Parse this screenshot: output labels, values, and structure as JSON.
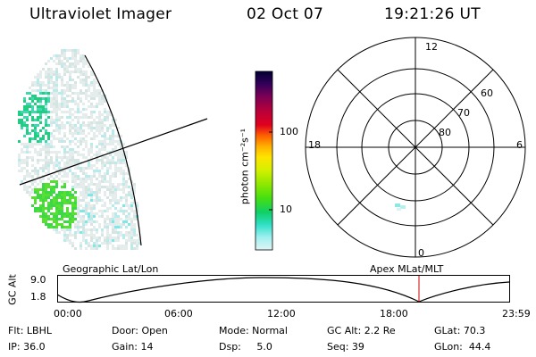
{
  "header": {
    "instrument": "Ultraviolet Imager",
    "date": "02 Oct 07",
    "time": "19:21:26 UT"
  },
  "colorbar": {
    "unit_label": "photon cm⁻²s⁻¹",
    "ticks": [
      "100",
      "10"
    ],
    "scale": "log",
    "colors": [
      "#000033",
      "#33005a",
      "#7a0055",
      "#b8003a",
      "#e0001f",
      "#ff6000",
      "#ffb000",
      "#ffe300",
      "#d6f000",
      "#90e800",
      "#46df10",
      "#10cf68",
      "#30e0c8",
      "#a0f0f0",
      "#e0f4f4"
    ]
  },
  "polar": {
    "hour_labels": {
      "top": "12",
      "left": "18",
      "right": "6",
      "bottom": "0"
    },
    "lat_labels": [
      "60",
      "70",
      "80"
    ]
  },
  "labels": {
    "geographic": "Geographic Lat/Lon",
    "apex": "Apex MLat/MLT"
  },
  "altitude_plot": {
    "axis_label": "GC Alt",
    "y_ticks": [
      "9.0",
      "1.8"
    ],
    "x_ticks": [
      "00:00",
      "06:00",
      "12:00",
      "18:00",
      "23:59"
    ],
    "marker_color": "#d00000"
  },
  "info": {
    "filter": "Flt: LBHL",
    "door": "Door: Open",
    "mode": "Mode: Normal",
    "gc_alt": "GC Alt: 2.2 Re",
    "glat": "GLat: 70.3",
    "ip": "IP: 36.0",
    "gain": "Gain: 14",
    "dsp": "Dsp:     5.0",
    "seq": "Seq: 39",
    "glon": "GLon:  44.4"
  }
}
